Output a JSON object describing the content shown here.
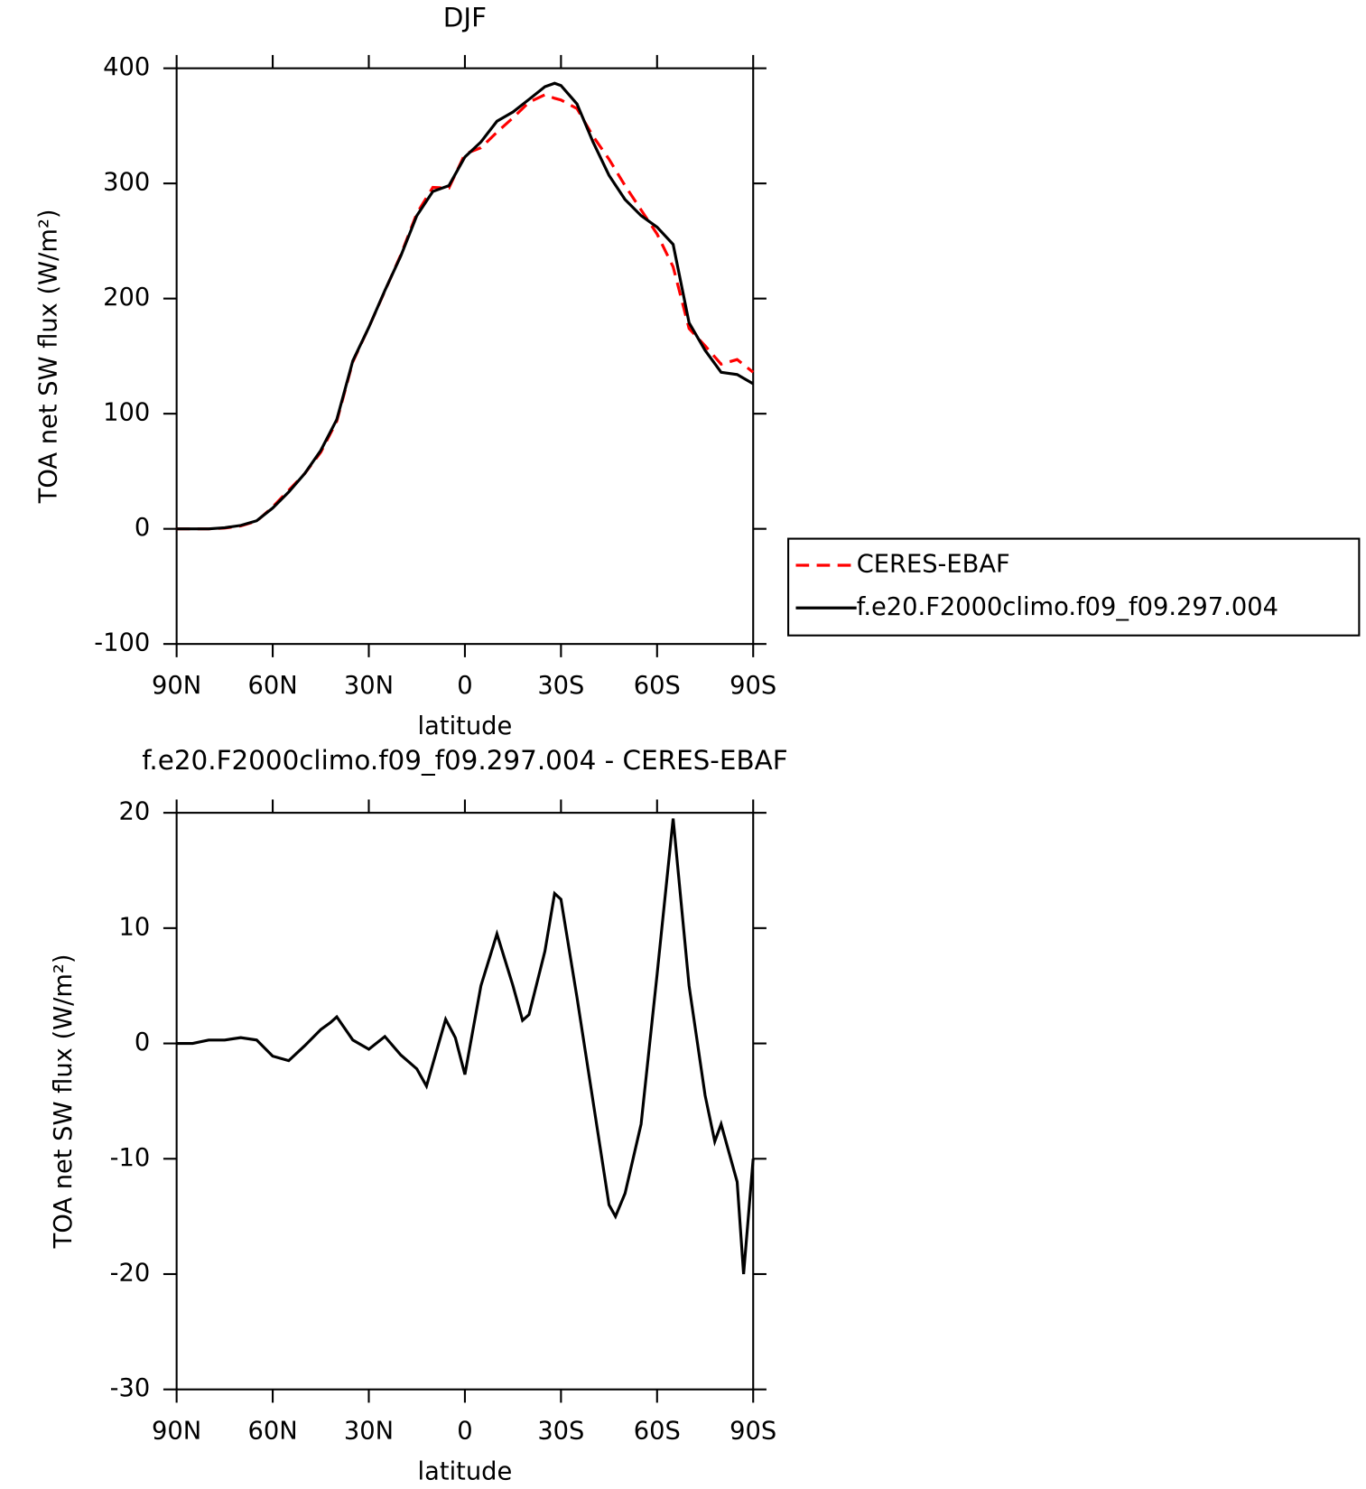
{
  "chart_data": [
    {
      "type": "line",
      "title": "DJF",
      "xlabel": "latitude",
      "ylabel": "TOA net SW flux (W/m²)",
      "x": [
        90,
        85,
        80,
        75,
        70,
        65,
        60,
        55,
        50,
        45,
        40,
        35,
        30,
        25,
        20,
        15,
        10,
        5,
        0,
        -5,
        -10,
        -15,
        -20,
        -25,
        -28,
        -30,
        -35,
        -40,
        -45,
        -50,
        -55,
        -60,
        -65,
        -70,
        -75,
        -80,
        -85,
        -90
      ],
      "series": [
        {
          "name": "CERES-EBAF",
          "color": "#ff0000",
          "linestyle": "dashed",
          "values": [
            0,
            0,
            0,
            0.7,
            2.5,
            6.7,
            19,
            33.5,
            48,
            66.5,
            93.5,
            145,
            175,
            206.5,
            238,
            274,
            296.5,
            296,
            325.5,
            331,
            344.5,
            357,
            370.5,
            377,
            374,
            372.5,
            365,
            341,
            321,
            298,
            277,
            256,
            227.5,
            174,
            159,
            143,
            147,
            136
          ]
        },
        {
          "name": "f.e20.F2000climo.f09_f09.297.004",
          "color": "#000000",
          "linestyle": "solid",
          "values": [
            0,
            0,
            0,
            1,
            3,
            7,
            18,
            32,
            48,
            68,
            95,
            146,
            175,
            207,
            237,
            272,
            293,
            298,
            323,
            336,
            354,
            362,
            373,
            384,
            387,
            385,
            369,
            336,
            307,
            286,
            272,
            262,
            247,
            179,
            155,
            136,
            134,
            126
          ]
        }
      ],
      "xlim": [
        90,
        -90
      ],
      "xticks": [
        {
          "value": 90,
          "label": "90N"
        },
        {
          "value": 60,
          "label": "60N"
        },
        {
          "value": 30,
          "label": "30N"
        },
        0,
        {
          "value": -30,
          "label": "30S"
        },
        {
          "value": -60,
          "label": "60S"
        },
        {
          "value": -90,
          "label": "90S"
        }
      ],
      "ylim": [
        -100,
        400
      ],
      "yticks": [
        -100,
        0,
        100,
        200,
        300,
        400
      ],
      "legend": "right"
    },
    {
      "type": "line",
      "title": "f.e20.F2000climo.f09_f09.297.004 - CERES-EBAF",
      "xlabel": "latitude",
      "ylabel": "TOA net SW flux (W/m²)",
      "x": [
        90,
        85,
        80,
        75,
        70,
        65,
        60,
        55,
        50,
        45,
        42,
        40,
        35,
        30,
        25,
        20,
        15,
        12,
        6,
        3,
        0,
        -5,
        -10,
        -15,
        -18,
        -20,
        -25,
        -28,
        -30,
        -35,
        -40,
        -45,
        -47,
        -50,
        -55,
        -60,
        -65,
        -70,
        -75,
        -78,
        -80,
        -85,
        -87,
        -90
      ],
      "series": [
        {
          "color": "#000000",
          "linestyle": "solid",
          "values": [
            0,
            0,
            0.3,
            0.3,
            0.5,
            0.3,
            -1.1,
            -1.5,
            -0.2,
            1.2,
            1.8,
            2.3,
            0.3,
            -0.5,
            0.6,
            -1,
            -2.2,
            -3.7,
            2.1,
            0.5,
            -2.7,
            5,
            9.5,
            5,
            2,
            2.5,
            8,
            13,
            12.5,
            4,
            -5,
            -14,
            -15,
            -13,
            -7,
            6,
            19.5,
            5,
            -4.5,
            -8.5,
            -7,
            -12,
            -20,
            -10
          ]
        }
      ],
      "xlim": [
        90,
        -90
      ],
      "xticks": [
        {
          "value": 90,
          "label": "90N"
        },
        {
          "value": 60,
          "label": "60N"
        },
        {
          "value": 30,
          "label": "30N"
        },
        0,
        {
          "value": -30,
          "label": "30S"
        },
        {
          "value": -60,
          "label": "60S"
        },
        {
          "value": -90,
          "label": "90S"
        }
      ],
      "ylim": [
        -30,
        20
      ],
      "yticks": [
        -30,
        -20,
        -10,
        0,
        10,
        20
      ]
    }
  ]
}
